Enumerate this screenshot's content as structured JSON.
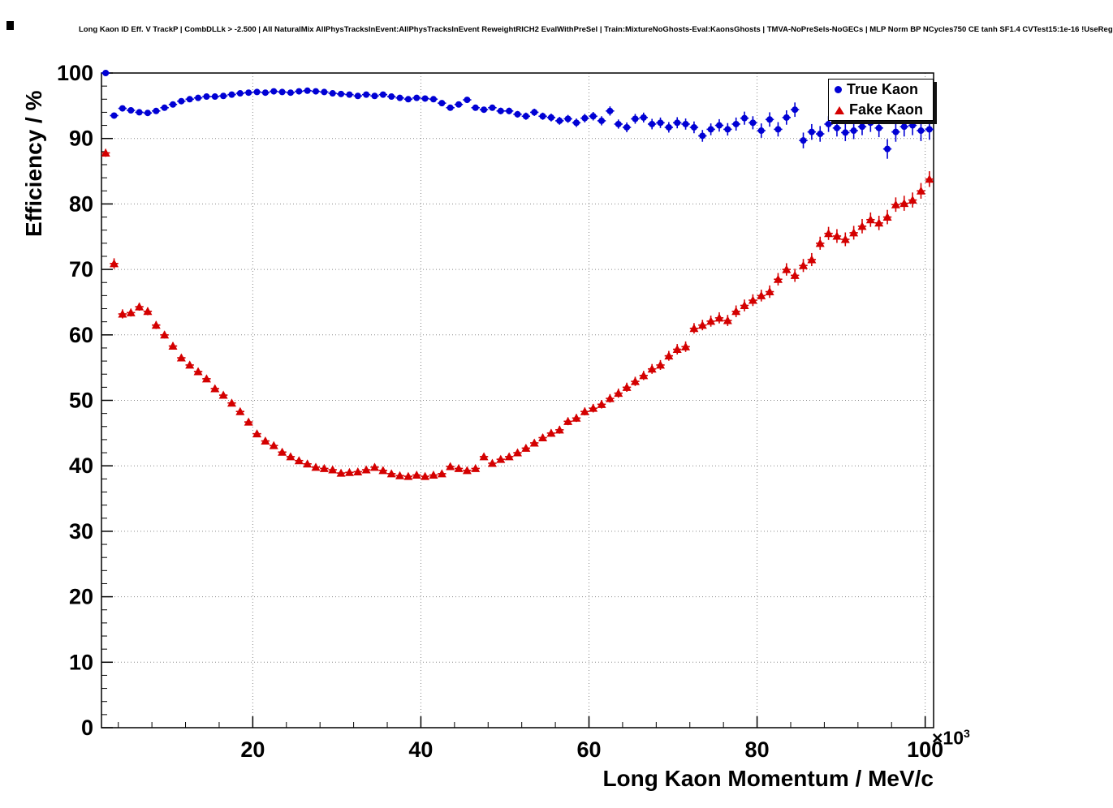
{
  "axes": {
    "x_mult_base": "×10",
    "x_mult_exp": "3"
  },
  "legend": {
    "entries": [
      {
        "label": "True Kaon",
        "color": "#0000d4",
        "marker": "circle"
      },
      {
        "label": "Fake Kaon",
        "color": "#d40000",
        "marker": "triangle"
      }
    ],
    "position": "top-right"
  },
  "chart_data": {
    "type": "scatter",
    "title": "Long Kaon ID Eff. V TrackP | CombDLLk > -2.500 | All NaturalMix AllPhysTracksInEvent:AllPhysTracksInEvent ReweightRICH2 EvalWithPreSel | Train:MixtureNoGhosts-Eval:KaonsGhosts | TMVA-NoPreSels-NoGECs | MLP Norm BP NCycles750 CE tanh SF1.4 CVTest15:1e-16 !UseReg",
    "xlabel": "Long Kaon Momentum / MeV/c",
    "ylabel": "Efficiency / %",
    "x_unit_scale": 1000,
    "xlim": [
      2,
      101
    ],
    "ylim": [
      0,
      100
    ],
    "xticks": [
      20,
      40,
      60,
      80,
      100
    ],
    "yticks": [
      0,
      10,
      20,
      30,
      40,
      50,
      60,
      70,
      80,
      90,
      100
    ],
    "grid": true,
    "legend_position": "top-right",
    "point_format": [
      "x_in_10e3_MeV",
      "y_percent",
      "y_err_percent"
    ],
    "series": [
      {
        "name": "True Kaon",
        "marker": "circle",
        "color": "#0000d4",
        "points": [
          [
            2.5,
            100,
            0.05
          ],
          [
            3.5,
            93.5,
            0.4
          ],
          [
            4.5,
            94.6,
            0.3
          ],
          [
            5.5,
            94.3,
            0.3
          ],
          [
            6.5,
            94.0,
            0.3
          ],
          [
            7.5,
            93.9,
            0.3
          ],
          [
            8.5,
            94.2,
            0.3
          ],
          [
            9.5,
            94.7,
            0.25
          ],
          [
            10.5,
            95.2,
            0.25
          ],
          [
            11.5,
            95.7,
            0.2
          ],
          [
            12.5,
            96.0,
            0.2
          ],
          [
            13.5,
            96.2,
            0.2
          ],
          [
            14.5,
            96.4,
            0.2
          ],
          [
            15.5,
            96.4,
            0.2
          ],
          [
            16.5,
            96.5,
            0.2
          ],
          [
            17.5,
            96.7,
            0.2
          ],
          [
            18.5,
            96.9,
            0.2
          ],
          [
            19.5,
            97.0,
            0.2
          ],
          [
            20.5,
            97.1,
            0.2
          ],
          [
            21.5,
            97.0,
            0.2
          ],
          [
            22.5,
            97.2,
            0.2
          ],
          [
            23.5,
            97.1,
            0.2
          ],
          [
            24.5,
            97.0,
            0.2
          ],
          [
            25.5,
            97.2,
            0.2
          ],
          [
            26.5,
            97.3,
            0.2
          ],
          [
            27.5,
            97.2,
            0.2
          ],
          [
            28.5,
            97.1,
            0.2
          ],
          [
            29.5,
            96.9,
            0.25
          ],
          [
            30.5,
            96.8,
            0.25
          ],
          [
            31.5,
            96.7,
            0.25
          ],
          [
            32.5,
            96.5,
            0.25
          ],
          [
            33.5,
            96.7,
            0.25
          ],
          [
            34.5,
            96.5,
            0.25
          ],
          [
            35.5,
            96.7,
            0.3
          ],
          [
            36.5,
            96.4,
            0.3
          ],
          [
            37.5,
            96.2,
            0.3
          ],
          [
            38.5,
            96.0,
            0.3
          ],
          [
            39.5,
            96.2,
            0.3
          ],
          [
            40.5,
            96.1,
            0.3
          ],
          [
            41.5,
            96.0,
            0.35
          ],
          [
            42.5,
            95.4,
            0.35
          ],
          [
            43.5,
            94.7,
            0.4
          ],
          [
            44.5,
            95.2,
            0.4
          ],
          [
            45.5,
            95.9,
            0.4
          ],
          [
            46.5,
            94.7,
            0.45
          ],
          [
            47.5,
            94.4,
            0.45
          ],
          [
            48.5,
            94.7,
            0.45
          ],
          [
            49.5,
            94.2,
            0.5
          ],
          [
            50.5,
            94.2,
            0.5
          ],
          [
            51.5,
            93.7,
            0.5
          ],
          [
            52.5,
            93.4,
            0.55
          ],
          [
            53.5,
            94.0,
            0.55
          ],
          [
            54.5,
            93.4,
            0.55
          ],
          [
            55.5,
            93.2,
            0.6
          ],
          [
            56.5,
            92.7,
            0.6
          ],
          [
            57.5,
            93.0,
            0.6
          ],
          [
            58.5,
            92.4,
            0.65
          ],
          [
            59.5,
            93.1,
            0.65
          ],
          [
            60.5,
            93.4,
            0.65
          ],
          [
            61.5,
            92.7,
            0.7
          ],
          [
            62.5,
            94.2,
            0.7
          ],
          [
            63.5,
            92.2,
            0.7
          ],
          [
            64.5,
            91.7,
            0.75
          ],
          [
            65.5,
            93.0,
            0.75
          ],
          [
            66.5,
            93.2,
            0.75
          ],
          [
            67.5,
            92.2,
            0.8
          ],
          [
            68.5,
            92.4,
            0.8
          ],
          [
            69.5,
            91.7,
            0.8
          ],
          [
            70.5,
            92.4,
            0.85
          ],
          [
            71.5,
            92.2,
            0.85
          ],
          [
            72.5,
            91.7,
            0.9
          ],
          [
            73.5,
            90.4,
            0.9
          ],
          [
            74.5,
            91.4,
            0.9
          ],
          [
            75.5,
            92.0,
            0.95
          ],
          [
            76.5,
            91.4,
            0.95
          ],
          [
            77.5,
            92.2,
            1.0
          ],
          [
            78.5,
            93.1,
            1.0
          ],
          [
            79.5,
            92.4,
            1.0
          ],
          [
            80.5,
            91.2,
            1.1
          ],
          [
            81.5,
            92.9,
            1.1
          ],
          [
            82.5,
            91.4,
            1.1
          ],
          [
            83.5,
            93.2,
            1.1
          ],
          [
            84.5,
            94.4,
            1.1
          ],
          [
            85.5,
            89.7,
            1.2
          ],
          [
            86.5,
            91.0,
            1.2
          ],
          [
            87.5,
            90.7,
            1.2
          ],
          [
            88.5,
            92.2,
            1.2
          ],
          [
            89.5,
            91.6,
            1.3
          ],
          [
            90.5,
            90.9,
            1.3
          ],
          [
            91.5,
            91.2,
            1.3
          ],
          [
            92.5,
            91.8,
            1.3
          ],
          [
            93.5,
            92.4,
            1.4
          ],
          [
            94.5,
            91.6,
            1.4
          ],
          [
            95.5,
            88.4,
            1.5
          ],
          [
            96.5,
            91.0,
            1.5
          ],
          [
            97.5,
            91.8,
            1.5
          ],
          [
            98.5,
            92.0,
            1.5
          ],
          [
            99.5,
            91.2,
            1.6
          ],
          [
            100.5,
            91.4,
            1.6
          ]
        ]
      },
      {
        "name": "Fake Kaon",
        "marker": "triangle",
        "color": "#d40000",
        "points": [
          [
            2.5,
            87.8,
            0.6
          ],
          [
            3.5,
            70.9,
            0.8
          ],
          [
            4.5,
            63.2,
            0.7
          ],
          [
            5.5,
            63.4,
            0.6
          ],
          [
            6.5,
            64.3,
            0.6
          ],
          [
            7.5,
            63.6,
            0.6
          ],
          [
            8.5,
            61.5,
            0.6
          ],
          [
            9.5,
            60.0,
            0.55
          ],
          [
            10.5,
            58.3,
            0.55
          ],
          [
            11.5,
            56.5,
            0.5
          ],
          [
            12.5,
            55.4,
            0.5
          ],
          [
            13.5,
            54.4,
            0.5
          ],
          [
            14.5,
            53.3,
            0.5
          ],
          [
            15.5,
            51.8,
            0.45
          ],
          [
            16.5,
            50.8,
            0.45
          ],
          [
            17.5,
            49.6,
            0.45
          ],
          [
            18.5,
            48.3,
            0.45
          ],
          [
            19.5,
            46.7,
            0.4
          ],
          [
            20.5,
            44.9,
            0.4
          ],
          [
            21.5,
            43.8,
            0.4
          ],
          [
            22.5,
            43.1,
            0.4
          ],
          [
            23.5,
            42.1,
            0.4
          ],
          [
            24.5,
            41.4,
            0.4
          ],
          [
            25.5,
            40.8,
            0.4
          ],
          [
            26.5,
            40.3,
            0.4
          ],
          [
            27.5,
            39.8,
            0.35
          ],
          [
            28.5,
            39.6,
            0.35
          ],
          [
            29.5,
            39.4,
            0.35
          ],
          [
            30.5,
            38.9,
            0.35
          ],
          [
            31.5,
            39.0,
            0.35
          ],
          [
            32.5,
            39.1,
            0.35
          ],
          [
            33.5,
            39.4,
            0.35
          ],
          [
            34.5,
            39.8,
            0.35
          ],
          [
            35.5,
            39.3,
            0.35
          ],
          [
            36.5,
            38.8,
            0.35
          ],
          [
            37.5,
            38.5,
            0.35
          ],
          [
            38.5,
            38.4,
            0.35
          ],
          [
            39.5,
            38.6,
            0.35
          ],
          [
            40.5,
            38.4,
            0.35
          ],
          [
            41.5,
            38.6,
            0.4
          ],
          [
            42.5,
            38.8,
            0.4
          ],
          [
            43.5,
            39.9,
            0.4
          ],
          [
            44.5,
            39.6,
            0.4
          ],
          [
            45.5,
            39.3,
            0.4
          ],
          [
            46.5,
            39.6,
            0.45
          ],
          [
            47.5,
            41.4,
            0.45
          ],
          [
            48.5,
            40.4,
            0.45
          ],
          [
            49.5,
            41.0,
            0.5
          ],
          [
            50.5,
            41.4,
            0.5
          ],
          [
            51.5,
            42.0,
            0.5
          ],
          [
            52.5,
            42.7,
            0.5
          ],
          [
            53.5,
            43.5,
            0.55
          ],
          [
            54.5,
            44.3,
            0.55
          ],
          [
            55.5,
            45.0,
            0.55
          ],
          [
            56.5,
            45.5,
            0.6
          ],
          [
            57.5,
            46.8,
            0.6
          ],
          [
            58.5,
            47.3,
            0.6
          ],
          [
            59.5,
            48.3,
            0.6
          ],
          [
            60.5,
            48.8,
            0.65
          ],
          [
            61.5,
            49.4,
            0.65
          ],
          [
            62.5,
            50.3,
            0.65
          ],
          [
            63.5,
            51.1,
            0.7
          ],
          [
            64.5,
            52.0,
            0.7
          ],
          [
            65.5,
            52.9,
            0.7
          ],
          [
            66.5,
            53.8,
            0.7
          ],
          [
            67.5,
            54.8,
            0.75
          ],
          [
            68.5,
            55.4,
            0.75
          ],
          [
            69.5,
            56.8,
            0.75
          ],
          [
            70.5,
            57.8,
            0.8
          ],
          [
            71.5,
            58.2,
            0.8
          ],
          [
            72.5,
            61.0,
            0.8
          ],
          [
            73.5,
            61.5,
            0.8
          ],
          [
            74.5,
            62.1,
            0.85
          ],
          [
            75.5,
            62.6,
            0.85
          ],
          [
            76.5,
            62.2,
            0.85
          ],
          [
            77.5,
            63.6,
            0.9
          ],
          [
            78.5,
            64.5,
            0.9
          ],
          [
            79.5,
            65.3,
            0.9
          ],
          [
            80.5,
            66.0,
            0.9
          ],
          [
            81.5,
            66.6,
            0.95
          ],
          [
            82.5,
            68.5,
            0.95
          ],
          [
            83.5,
            70.0,
            0.95
          ],
          [
            84.5,
            69.1,
            1.0
          ],
          [
            85.5,
            70.6,
            1.0
          ],
          [
            86.5,
            71.5,
            1.0
          ],
          [
            87.5,
            74.0,
            1.0
          ],
          [
            88.5,
            75.5,
            1.0
          ],
          [
            89.5,
            75.1,
            1.05
          ],
          [
            90.5,
            74.6,
            1.05
          ],
          [
            91.5,
            75.6,
            1.05
          ],
          [
            92.5,
            76.6,
            1.1
          ],
          [
            93.5,
            77.6,
            1.1
          ],
          [
            94.5,
            77.1,
            1.1
          ],
          [
            95.5,
            78.0,
            1.1
          ],
          [
            96.5,
            79.9,
            1.1
          ],
          [
            97.5,
            80.1,
            1.15
          ],
          [
            98.5,
            80.6,
            1.15
          ],
          [
            99.5,
            82.0,
            1.2
          ],
          [
            100.5,
            83.8,
            1.2
          ]
        ]
      }
    ]
  }
}
